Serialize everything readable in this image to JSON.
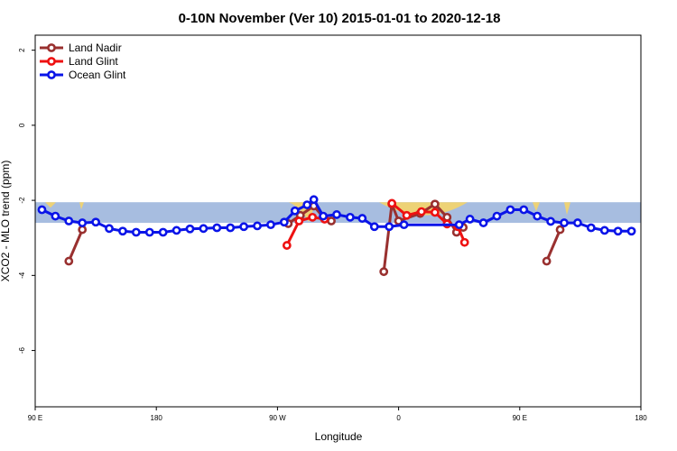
{
  "chart_data": {
    "type": "line",
    "title": "0-10N November (Ver 10)   2015-01-01 to 2020-12-18",
    "xlabel": "Longitude",
    "ylabel": "XCO2 - MLO trend (ppm)",
    "xlim": [
      90,
      540
    ],
    "ylim": [
      -7.5,
      2.4
    ],
    "x_ticks": [
      {
        "value": 90,
        "label": "90 E"
      },
      {
        "value": 180,
        "label": "180"
      },
      {
        "value": 270,
        "label": "90 W"
      },
      {
        "value": 360,
        "label": "0"
      },
      {
        "value": 450,
        "label": "90 E"
      },
      {
        "value": 540,
        "label": "180"
      }
    ],
    "y_ticks": [
      {
        "value": 2,
        "label": "2"
      },
      {
        "value": 0,
        "label": "0"
      },
      {
        "value": -2,
        "label": "-2"
      },
      {
        "value": -4,
        "label": "-4"
      },
      {
        "value": -6,
        "label": "-6"
      }
    ],
    "band": {
      "ymin": -2.6,
      "ymax": -2.05,
      "color": "#a7bde0",
      "land_color": "#f5d46a"
    },
    "legend_position": "top-left",
    "series": [
      {
        "name": "Land Nadir",
        "color": "#99302f",
        "segments": [
          [
            [
              115,
              -3.62
            ],
            [
              125,
              -2.78
            ]
          ],
          [
            [
              278,
              -2.62
            ],
            [
              287,
              -2.4
            ],
            [
              297,
              -2.15
            ],
            [
              304,
              -2.45
            ],
            [
              310,
              -2.55
            ]
          ],
          [
            [
              349,
              -3.9
            ],
            [
              355,
              -2.1
            ],
            [
              360,
              -2.55
            ],
            [
              376,
              -2.35
            ],
            [
              387,
              -2.1
            ],
            [
              396,
              -2.45
            ],
            [
              403,
              -2.85
            ],
            [
              408,
              -2.72
            ]
          ],
          [
            [
              470,
              -3.62
            ],
            [
              480,
              -2.78
            ]
          ]
        ]
      },
      {
        "name": "Land Glint",
        "color": "#ee1111",
        "segments": [
          [
            [
              277,
              -3.2
            ],
            [
              286,
              -2.55
            ],
            [
              296,
              -2.45
            ],
            [
              305,
              -2.5
            ]
          ],
          [
            [
              355,
              -2.08
            ],
            [
              366,
              -2.4
            ],
            [
              377,
              -2.3
            ],
            [
              387,
              -2.32
            ],
            [
              396,
              -2.63
            ],
            [
              404,
              -2.7
            ],
            [
              409,
              -3.12
            ]
          ]
        ]
      },
      {
        "name": "Ocean Glint",
        "color": "#0a14e8",
        "segments": [
          [
            [
              95,
              -2.25
            ],
            [
              105,
              -2.42
            ],
            [
              115,
              -2.55
            ],
            [
              125,
              -2.6
            ],
            [
              135,
              -2.58
            ],
            [
              145,
              -2.75
            ],
            [
              155,
              -2.82
            ],
            [
              165,
              -2.85
            ],
            [
              175,
              -2.85
            ],
            [
              185,
              -2.85
            ],
            [
              195,
              -2.8
            ],
            [
              205,
              -2.76
            ],
            [
              215,
              -2.75
            ],
            [
              225,
              -2.73
            ],
            [
              235,
              -2.73
            ],
            [
              245,
              -2.7
            ],
            [
              255,
              -2.68
            ],
            [
              265,
              -2.65
            ],
            [
              275,
              -2.58
            ],
            [
              283,
              -2.28
            ],
            [
              292,
              -2.12
            ],
            [
              297,
              -1.98
            ],
            [
              304,
              -2.42
            ],
            [
              314,
              -2.38
            ],
            [
              324,
              -2.45
            ],
            [
              333,
              -2.48
            ],
            [
              342,
              -2.7
            ],
            [
              353,
              -2.7
            ],
            [
              364,
              -2.65
            ],
            [
              405,
              -2.65
            ],
            [
              413,
              -2.5
            ],
            [
              423,
              -2.6
            ],
            [
              433,
              -2.42
            ],
            [
              443,
              -2.25
            ],
            [
              453,
              -2.25
            ],
            [
              463,
              -2.42
            ],
            [
              473,
              -2.56
            ],
            [
              483,
              -2.6
            ],
            [
              493,
              -2.6
            ],
            [
              503,
              -2.73
            ],
            [
              513,
              -2.8
            ],
            [
              523,
              -2.82
            ],
            [
              533,
              -2.82
            ]
          ]
        ]
      }
    ]
  }
}
